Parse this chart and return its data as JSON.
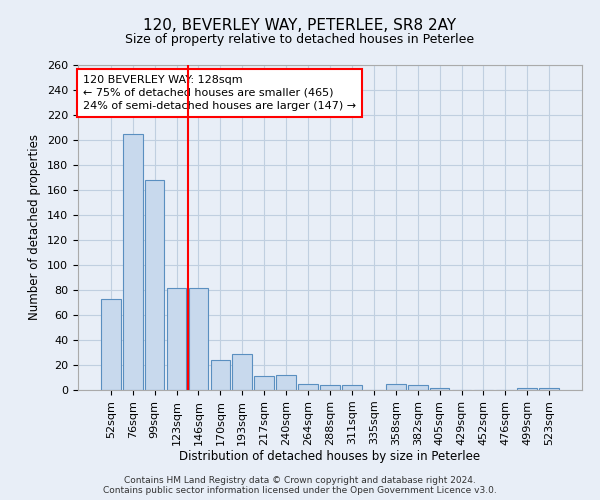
{
  "title": "120, BEVERLEY WAY, PETERLEE, SR8 2AY",
  "subtitle": "Size of property relative to detached houses in Peterlee",
  "xlabel": "Distribution of detached houses by size in Peterlee",
  "ylabel": "Number of detached properties",
  "categories": [
    "52sqm",
    "76sqm",
    "99sqm",
    "123sqm",
    "146sqm",
    "170sqm",
    "193sqm",
    "217sqm",
    "240sqm",
    "264sqm",
    "288sqm",
    "311sqm",
    "335sqm",
    "358sqm",
    "382sqm",
    "405sqm",
    "429sqm",
    "452sqm",
    "476sqm",
    "499sqm",
    "523sqm"
  ],
  "values": [
    73,
    205,
    168,
    82,
    82,
    24,
    29,
    11,
    12,
    5,
    4,
    4,
    0,
    5,
    4,
    2,
    0,
    0,
    0,
    2,
    2
  ],
  "bar_color": "#c8d9ed",
  "bar_edge_color": "#5a8fc0",
  "grid_color": "#c0cfe0",
  "background_color": "#e8eef7",
  "vline_x": 3.5,
  "vline_color": "red",
  "annotation_text": "120 BEVERLEY WAY: 128sqm\n← 75% of detached houses are smaller (465)\n24% of semi-detached houses are larger (147) →",
  "annotation_box_color": "white",
  "annotation_box_edge": "red",
  "ylim": [
    0,
    260
  ],
  "yticks": [
    0,
    20,
    40,
    60,
    80,
    100,
    120,
    140,
    160,
    180,
    200,
    220,
    240,
    260
  ],
  "footer": "Contains HM Land Registry data © Crown copyright and database right 2024.\nContains public sector information licensed under the Open Government Licence v3.0.",
  "title_fontsize": 11,
  "subtitle_fontsize": 9,
  "ylabel_fontsize": 8.5,
  "xlabel_fontsize": 8.5,
  "tick_fontsize": 8,
  "annotation_fontsize": 8,
  "footer_fontsize": 6.5
}
